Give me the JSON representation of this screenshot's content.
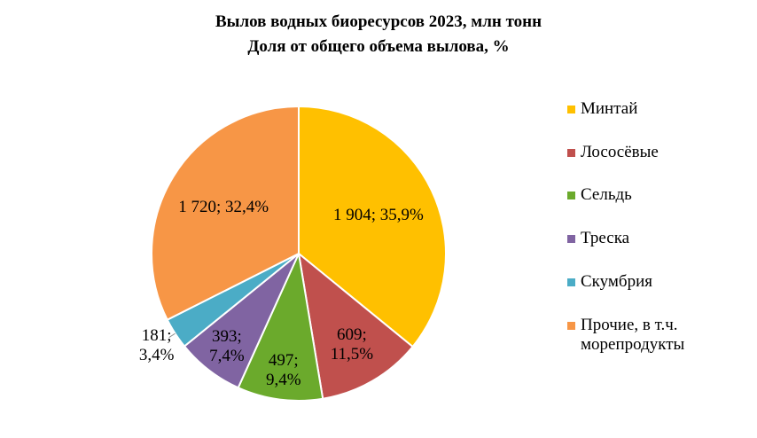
{
  "chart_data": {
    "type": "pie",
    "title": "Вылов водных биоресурсов 2023, млн тонн",
    "subtitle": "Доля от общего объема вылова, %",
    "categories": [
      "Минтай",
      "Лососёвые",
      "Сельдь",
      "Треска",
      "Скумбрия",
      "Прочие, в т.ч. морепродукты"
    ],
    "values": [
      1904,
      609,
      497,
      393,
      181,
      1720
    ],
    "value_labels": [
      "1 904; 35,9%",
      "609; 11,5%",
      "497; 9,4%",
      "393; 7,4%",
      "181; 3,4%",
      "1 720; 32,4%"
    ],
    "colors": [
      "#FFC000",
      "#C0504D",
      "#6BAA2C",
      "#8064A2",
      "#4BACC6",
      "#F79646"
    ],
    "legend": "right"
  }
}
